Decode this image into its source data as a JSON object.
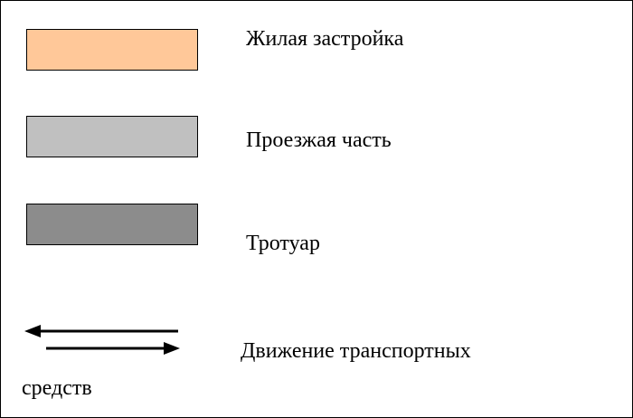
{
  "legend": {
    "items": [
      {
        "label": "Жилая застройка",
        "color": "#FFC899"
      },
      {
        "label": "Проезжая часть",
        "color": "#C0C0C0"
      },
      {
        "label": "Тротуар",
        "color": "#8C8C8C"
      }
    ],
    "traffic": {
      "label_line1": "Движение транспортных",
      "label_line2": "средств",
      "icon": "two-way-arrows-icon",
      "arrow_color": "#000000"
    }
  }
}
